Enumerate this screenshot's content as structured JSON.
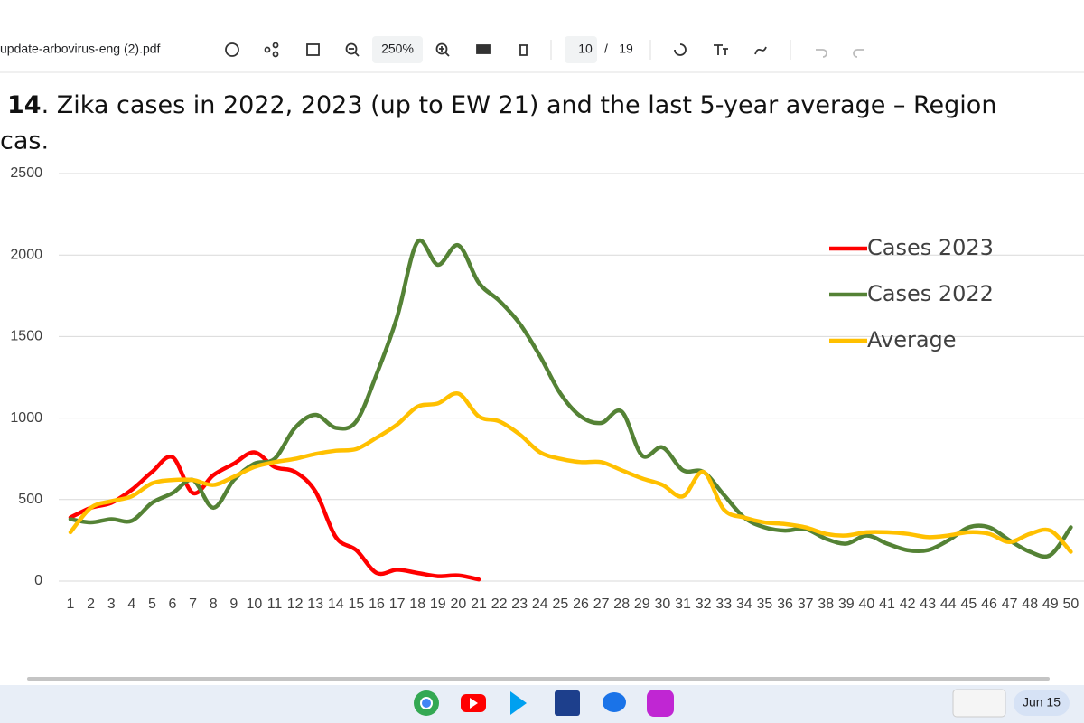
{
  "ui": {
    "file_name": "update-arbovirus-eng (2).pdf",
    "zoom": "250%",
    "page_current": "10",
    "page_separator": "/",
    "page_total": "19",
    "date": "Jun 15"
  },
  "chart_data": {
    "type": "line",
    "title_number": "14",
    "title": ". Zika cases in 2022, 2023 (up to EW 21) and the last 5-year average – Region",
    "title_continuation": "cas.",
    "categories": [
      1,
      2,
      3,
      4,
      5,
      6,
      7,
      8,
      9,
      10,
      11,
      12,
      13,
      14,
      15,
      16,
      17,
      18,
      19,
      20,
      21,
      22,
      23,
      24,
      25,
      26,
      27,
      28,
      29,
      30,
      31,
      32,
      33,
      34,
      35,
      36,
      37,
      38,
      39,
      40,
      41,
      42,
      43,
      44,
      45,
      46,
      47,
      48,
      49,
      50
    ],
    "series": [
      {
        "name": "Cases 2023",
        "color": "#ff0000",
        "values": [
          390,
          450,
          480,
          560,
          670,
          760,
          540,
          650,
          720,
          790,
          700,
          670,
          550,
          270,
          190,
          50,
          70,
          50,
          30,
          35,
          10,
          null,
          null,
          null,
          null,
          null,
          null,
          null,
          null,
          null,
          null,
          null,
          null,
          null,
          null,
          null,
          null,
          null,
          null,
          null,
          null,
          null,
          null,
          null,
          null,
          null,
          null,
          null,
          null,
          null
        ]
      },
      {
        "name": "Cases 2022",
        "color": "#548235",
        "values": [
          380,
          360,
          380,
          370,
          480,
          540,
          620,
          450,
          620,
          720,
          750,
          940,
          1020,
          940,
          980,
          1270,
          1620,
          2080,
          1940,
          2060,
          1830,
          1720,
          1580,
          1380,
          1150,
          1010,
          970,
          1040,
          770,
          820,
          680,
          670,
          530,
          390,
          330,
          310,
          320,
          260,
          230,
          280,
          230,
          190,
          190,
          250,
          330,
          330,
          250,
          180,
          160,
          330
        ]
      },
      {
        "name": "Average",
        "color": "#ffc000",
        "values": [
          300,
          450,
          490,
          520,
          600,
          620,
          620,
          590,
          640,
          700,
          730,
          750,
          780,
          800,
          810,
          880,
          960,
          1070,
          1090,
          1150,
          1010,
          980,
          900,
          790,
          750,
          730,
          730,
          680,
          630,
          590,
          520,
          670,
          440,
          390,
          360,
          350,
          330,
          290,
          280,
          300,
          300,
          290,
          270,
          280,
          300,
          290,
          240,
          290,
          310,
          180
        ]
      }
    ],
    "ylim": [
      0,
      2500
    ],
    "yticks": [
      0,
      500,
      1000,
      1500,
      2000,
      2500
    ],
    "grid": true,
    "legend": "right"
  }
}
